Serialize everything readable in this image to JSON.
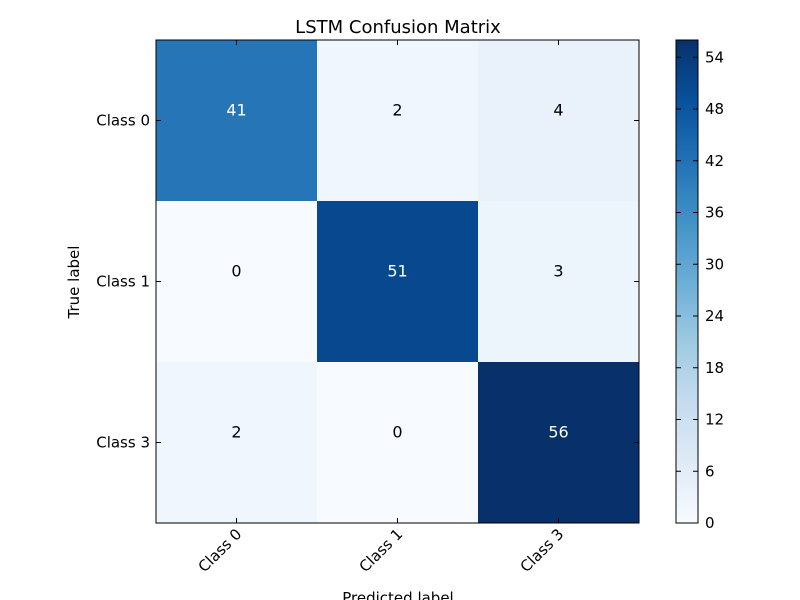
{
  "chart_data": {
    "type": "heatmap",
    "title": "LSTM Confusion Matrix",
    "xlabel": "Predicted label",
    "ylabel": "True label",
    "x_categories": [
      "Class 0",
      "Class 1",
      "Class 3"
    ],
    "y_categories": [
      "Class 0",
      "Class 1",
      "Class 3"
    ],
    "values": [
      [
        41,
        2,
        4
      ],
      [
        0,
        51,
        3
      ],
      [
        2,
        0,
        56
      ]
    ],
    "colormap": "Blues",
    "colorbar": {
      "min": 0,
      "max": 56,
      "ticks": [
        "0",
        "6",
        "12",
        "18",
        "24",
        "30",
        "36",
        "42",
        "48",
        "54"
      ]
    },
    "text_color_dark_threshold": 28,
    "grid": false
  }
}
